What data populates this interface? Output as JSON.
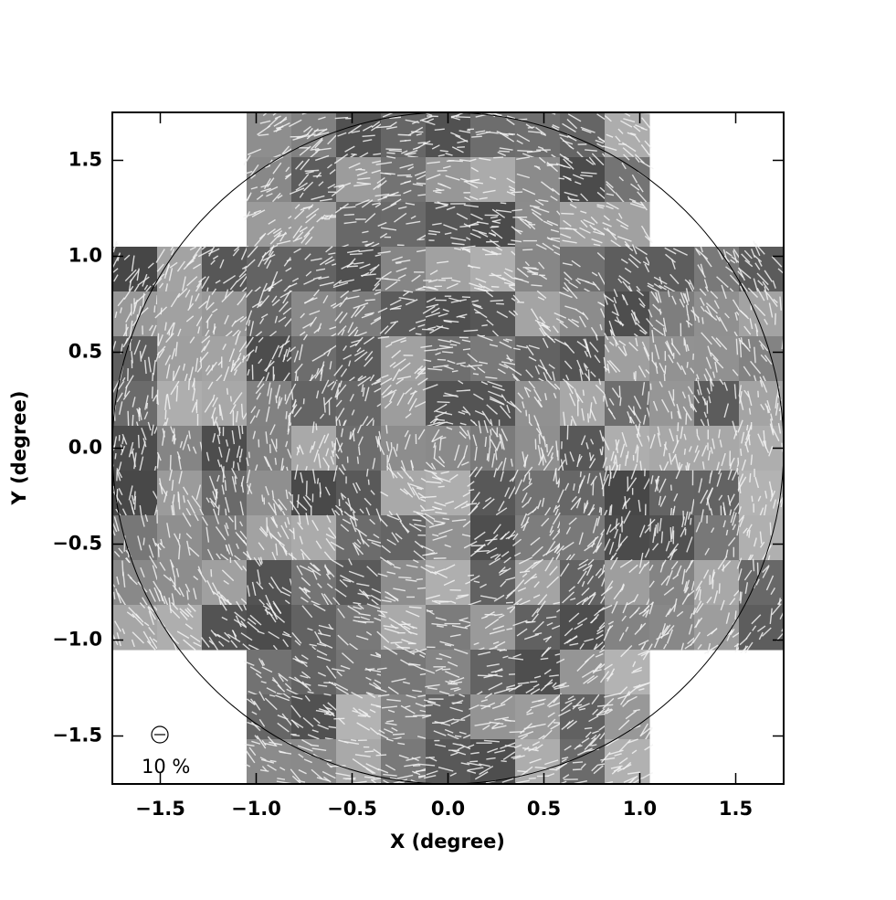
{
  "chart_data": {
    "type": "vector-map",
    "xlabel": "X (degree)",
    "ylabel": "Y (degree)",
    "xlim": [
      -1.75,
      1.75
    ],
    "ylim": [
      -1.75,
      1.75
    ],
    "xticks": [
      {
        "value": -1.5,
        "label": "−1.5"
      },
      {
        "value": -1.0,
        "label": "−1.0"
      },
      {
        "value": -0.5,
        "label": "−0.5"
      },
      {
        "value": 0,
        "label": "0.0"
      },
      0.5,
      {
        "value": 1.0,
        "label": "1.0"
      },
      1.5
    ],
    "yticks": [
      {
        "value": -1.5,
        "label": "−1.5"
      },
      {
        "value": -1.0,
        "label": "−1.0"
      },
      {
        "value": -0.5,
        "label": "−0.5"
      },
      {
        "value": 0,
        "label": "0.0"
      },
      0.5,
      {
        "value": 1.0,
        "label": "1.0"
      },
      1.5
    ],
    "circle_radius": 1.75,
    "legend_label": "10 %"
  }
}
